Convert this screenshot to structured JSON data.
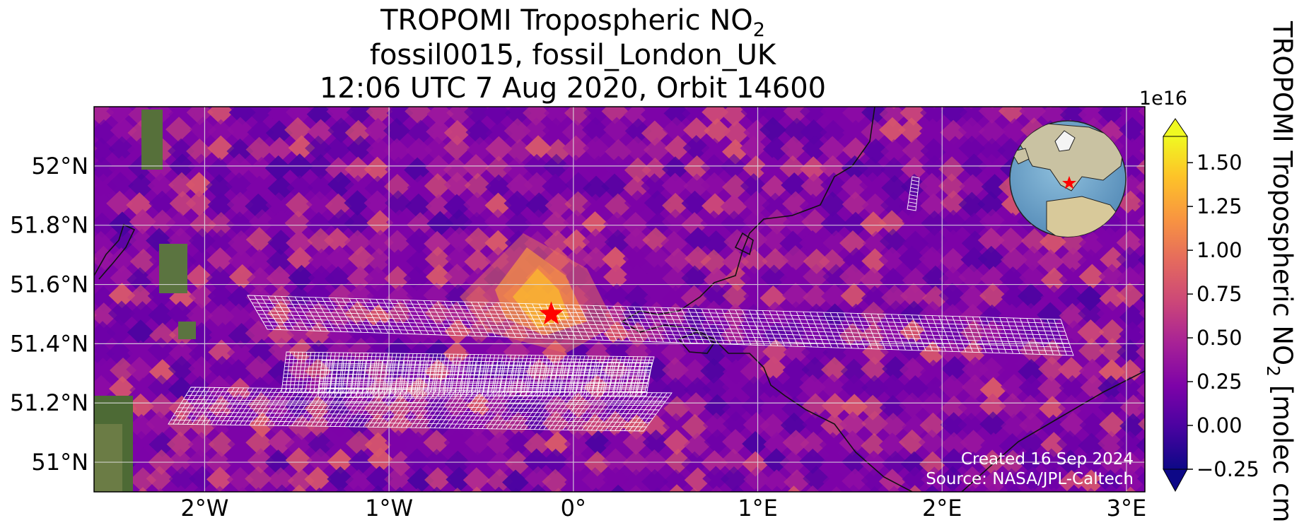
{
  "title": {
    "line1_main": "TROPOMI Tropospheric NO",
    "line1_sub": "2",
    "line2": "fossil0015, fossil_London_UK",
    "line3": "12:06 UTC 7 Aug 2020, Orbit 14600"
  },
  "map": {
    "lon_range": [
      -2.6,
      3.1
    ],
    "lat_range": [
      50.9,
      52.2
    ],
    "x_ticks": [
      {
        "value": -2,
        "label": "2°W"
      },
      {
        "value": -1,
        "label": "1°W"
      },
      {
        "value": 0,
        "label": "0°"
      },
      {
        "value": 1,
        "label": "1°E"
      },
      {
        "value": 2,
        "label": "2°E"
      },
      {
        "value": 3,
        "label": "3°E"
      }
    ],
    "y_ticks": [
      {
        "value": 51.0,
        "label": "51°N"
      },
      {
        "value": 51.2,
        "label": "51.2°N"
      },
      {
        "value": 51.4,
        "label": "51.4°N"
      },
      {
        "value": 51.6,
        "label": "51.6°N"
      },
      {
        "value": 51.8,
        "label": "51.8°N"
      },
      {
        "value": 52.0,
        "label": "52°N"
      }
    ],
    "grid": true,
    "target_site": {
      "lon": -0.12,
      "lat": 51.5,
      "marker": "red-star"
    },
    "footer_line1": "Created 16 Sep 2024",
    "footer_line2": "Source: NASA/JPL-Caltech"
  },
  "colorbar": {
    "label_main": "TROPOMI Tropospheric NO",
    "label_sub": "2",
    "label_tail": " [molec cm",
    "exponent": "1e16",
    "min": -0.25,
    "max": 1.65,
    "extend": "both",
    "colormap": "plasma",
    "ticks": [
      {
        "value": -0.25,
        "label": "−0.25"
      },
      {
        "value": 0.0,
        "label": "0.00"
      },
      {
        "value": 0.25,
        "label": "0.25"
      },
      {
        "value": 0.5,
        "label": "0.50"
      },
      {
        "value": 0.75,
        "label": "0.75"
      },
      {
        "value": 1.0,
        "label": "1.00"
      },
      {
        "value": 1.25,
        "label": "1.25"
      },
      {
        "value": 1.5,
        "label": "1.50"
      }
    ]
  },
  "colors": {
    "grid": "#e0e0e0",
    "coast": "#111111",
    "swath": "#ffffff",
    "star": "#ff0000",
    "plasma_low": "#0d0887",
    "plasma_high": "#f0f921"
  }
}
